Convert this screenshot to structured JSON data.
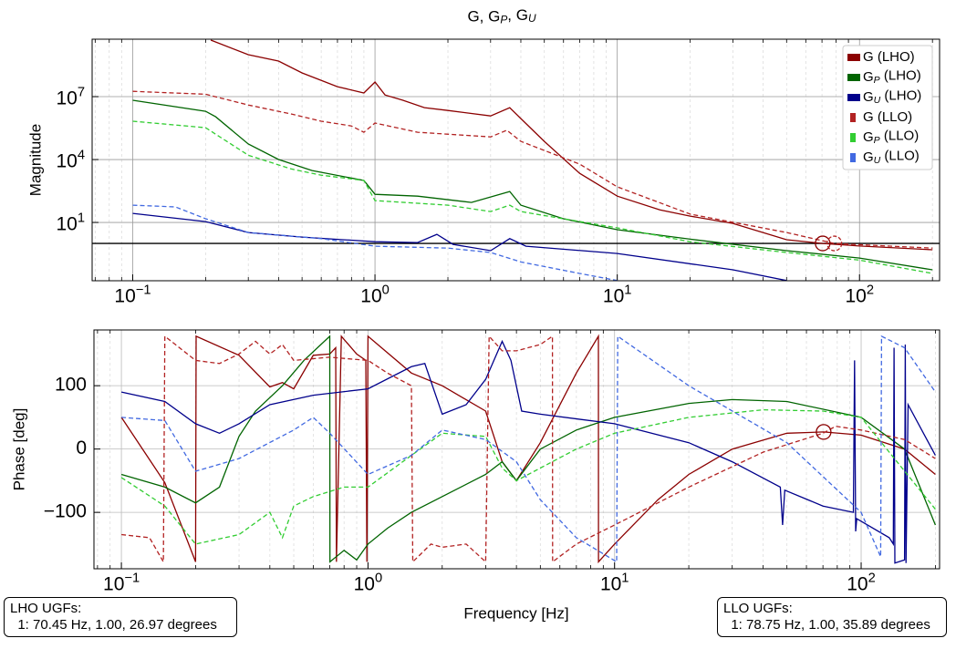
{
  "title": "G, G_P, G_U",
  "xlabel": "Frequency [Hz]",
  "annotations": [
    {
      "lines": [
        "LHO UGFs:",
        "  1: 70.45 Hz, 1.00, 26.97 degrees"
      ]
    },
    {
      "lines": [
        "LLO UGFs:",
        "  1: 78.75 Hz, 1.00, 35.89 degrees"
      ]
    }
  ],
  "chart_data": [
    {
      "type": "line",
      "xscale": "log",
      "yscale": "log",
      "grid": true,
      "legend": "upper right",
      "ylabel": "Magnitude",
      "xlim": [
        0.068,
        214
      ],
      "ylim": [
        0.0166,
        5500000000
      ],
      "xticks": [
        {
          "value": 0.1,
          "label": "10^−1"
        },
        {
          "value": 1,
          "label": "10^0"
        },
        {
          "value": 10,
          "label": "10^1"
        },
        {
          "value": 100,
          "label": "10^2"
        }
      ],
      "yticks": [
        {
          "value": 10,
          "label": "10^1"
        },
        {
          "value": 10000,
          "label": "10^4"
        },
        {
          "value": 10000000,
          "label": "10^7"
        }
      ],
      "hline": 1,
      "markers": [
        {
          "x": 70.45,
          "y": 1,
          "color": "#8b0000"
        },
        {
          "x": 78.75,
          "y": 1,
          "color": "#b22222"
        }
      ],
      "series": [
        {
          "name": "G (LHO)",
          "color": "#8b0000",
          "dashed": false,
          "x": [
            0.21,
            0.3,
            0.4,
            0.5,
            0.7,
            0.9,
            1.0,
            1.1,
            1.3,
            1.6,
            2.0,
            3.0,
            3.6,
            4.0,
            5,
            7,
            10,
            15,
            20,
            30,
            50,
            70.45,
            100,
            200
          ],
          "values": [
            5000000000,
            1000000000,
            500000000,
            135000000,
            30000000,
            15000000,
            50000000,
            12000000,
            6800000,
            3000000,
            2200000,
            1200000,
            3000000,
            900000,
            74000,
            2200,
            180,
            40,
            20,
            9,
            1.5,
            1.0,
            0.75,
            0.5
          ]
        },
        {
          "name": "G_P (LHO)",
          "color": "#006400",
          "dashed": false,
          "x": [
            0.1,
            0.2,
            0.22,
            0.3,
            0.4,
            0.55,
            0.9,
            1.0,
            1.5,
            2.5,
            3.6,
            4.0,
            6,
            10,
            20,
            50,
            100,
            200
          ],
          "values": [
            6700000,
            2000000,
            1100000,
            55000,
            10000,
            3000,
            1000,
            220,
            180,
            90,
            300,
            67,
            15,
            4.5,
            1.6,
            0.45,
            0.2,
            0.055
          ]
        },
        {
          "name": "G_U (LHO)",
          "color": "#00008b",
          "dashed": false,
          "x": [
            0.1,
            0.2,
            0.3,
            0.5,
            1.0,
            1.5,
            1.8,
            2.1,
            3.0,
            3.6,
            4.2,
            10,
            30,
            50
          ],
          "values": [
            27,
            11,
            3.3,
            2,
            1.2,
            1.1,
            2.7,
            0.9,
            0.45,
            1.7,
            0.74,
            0.33,
            0.055,
            0.017
          ]
        },
        {
          "name": "G (LLO)",
          "color": "#b22222",
          "dashed": true,
          "x": [
            0.1,
            0.2,
            0.3,
            0.45,
            0.6,
            0.8,
            0.9,
            1.0,
            1.5,
            3.0,
            3.5,
            4,
            7,
            10,
            20,
            50,
            78.75,
            200
          ],
          "values": [
            18000000,
            13000000,
            4000000,
            1500000,
            670000,
            400000,
            200000,
            550000,
            200000,
            120000,
            250000,
            74000,
            6000,
            500,
            25,
            3.3,
            1,
            0.6
          ]
        },
        {
          "name": "G_P (LLO)",
          "color": "#32cd32",
          "dashed": true,
          "x": [
            0.1,
            0.2,
            0.3,
            0.45,
            0.6,
            0.9,
            1.0,
            2.0,
            3.0,
            3.6,
            4,
            10,
            20,
            50,
            100,
            200
          ],
          "values": [
            670000,
            330000,
            16000,
            3600,
            1800,
            1000,
            110,
            67,
            33,
            67,
            33,
            5.5,
            1.2,
            0.37,
            0.16,
            0.037
          ]
        },
        {
          "name": "G_U (LLO)",
          "color": "#4169e1",
          "dashed": true,
          "x": [
            0.1,
            0.15,
            0.2,
            0.3,
            0.6,
            1.0,
            2,
            3,
            4,
            7,
            10
          ],
          "values": [
            67,
            55,
            15,
            3.3,
            1.7,
            0.74,
            0.6,
            0.37,
            0.13,
            0.037,
            0.017
          ]
        }
      ]
    },
    {
      "type": "line",
      "xscale": "log",
      "grid": true,
      "ylabel": "Phase [deg]",
      "xlim": [
        0.0774,
        208
      ],
      "ylim": [
        -189,
        188
      ],
      "xticks": [
        {
          "value": 0.1,
          "label": "10^−1"
        },
        {
          "value": 1,
          "label": "10^0"
        },
        {
          "value": 10,
          "label": "10^1"
        },
        {
          "value": 100,
          "label": "10^2"
        }
      ],
      "yticks": [
        {
          "value": -100,
          "label": "−100"
        },
        0,
        100
      ],
      "markers": [
        {
          "x": 70.45,
          "y": 26.97,
          "color": "#8b0000"
        }
      ],
      "series": [
        {
          "name": "G (LHO)",
          "color": "#8b0000",
          "dashed": false,
          "x": [
            0.1,
            0.15,
            0.2,
            0.201,
            0.3,
            0.4,
            0.45,
            0.5,
            0.6,
            0.7,
            0.74,
            0.745,
            0.78,
            0.9,
            0.98,
            0.99,
            1.0,
            1.5,
            2.0,
            3.0,
            3.5,
            4.0,
            5,
            7,
            8.6,
            8.61,
            10,
            15,
            20,
            30,
            50,
            70.45,
            100,
            150,
            200
          ],
          "values": [
            50,
            -53,
            -178,
            178,
            148,
            98,
            105,
            95,
            148,
            150,
            160,
            -178,
            178,
            150,
            140,
            -178,
            178,
            120,
            100,
            60,
            -20,
            -50,
            10,
            120,
            178,
            -178,
            -150,
            -80,
            -40,
            0,
            25,
            26.97,
            22,
            0,
            -40
          ]
        },
        {
          "name": "G_P (LHO)",
          "color": "#006400",
          "dashed": false,
          "x": [
            0.1,
            0.15,
            0.2,
            0.25,
            0.3,
            0.35,
            0.45,
            0.55,
            0.7,
            0.701,
            0.8,
            0.9,
            1.0,
            1.2,
            1.5,
            2.0,
            3.0,
            3.5,
            4.0,
            5,
            7,
            10,
            20,
            30,
            50,
            100,
            150,
            200
          ],
          "values": [
            -40,
            -60,
            -85,
            -60,
            20,
            60,
            100,
            140,
            178,
            -178,
            -160,
            -175,
            -150,
            -125,
            -100,
            -75,
            -40,
            -20,
            -50,
            0,
            30,
            50,
            72,
            78,
            75,
            50,
            0,
            -120
          ]
        },
        {
          "name": "G_U (LHO)",
          "color": "#00008b",
          "dashed": false,
          "x": [
            0.1,
            0.15,
            0.2,
            0.25,
            0.3,
            0.4,
            0.6,
            1.0,
            1.5,
            1.7,
            2.0,
            2.5,
            3.0,
            3.5,
            3.8,
            4.2,
            5,
            10,
            20,
            30,
            47,
            48,
            49,
            70,
            93,
            94,
            95,
            96,
            130,
            135,
            136,
            137,
            150,
            151,
            152,
            155,
            200
          ],
          "values": [
            90,
            75,
            40,
            25,
            40,
            70,
            85,
            95,
            130,
            135,
            55,
            70,
            110,
            170,
            140,
            60,
            55,
            40,
            10,
            -20,
            -60,
            -120,
            -65,
            -90,
            -100,
            140,
            -130,
            -110,
            -140,
            -150,
            160,
            -180,
            -175,
            165,
            -180,
            70,
            -10
          ]
        },
        {
          "name": "G (LLO)",
          "color": "#b22222",
          "dashed": true,
          "x": [
            0.1,
            0.13,
            0.148,
            0.15,
            0.2,
            0.25,
            0.3,
            0.35,
            0.4,
            0.45,
            0.5,
            0.7,
            1.0,
            1.2,
            1.5,
            1.52,
            1.8,
            2.0,
            2.5,
            3.0,
            3.1,
            3.5,
            4,
            5,
            5.6,
            5.61,
            7,
            10,
            20,
            40,
            70,
            78.75,
            100,
            150,
            200
          ],
          "values": [
            -135,
            -140,
            -178,
            178,
            140,
            135,
            150,
            170,
            150,
            165,
            140,
            145,
            140,
            120,
            100,
            -178,
            -150,
            -155,
            -150,
            -178,
            178,
            155,
            155,
            165,
            178,
            -178,
            -150,
            -120,
            -60,
            -5,
            25,
            35.89,
            30,
            15,
            -15
          ]
        },
        {
          "name": "G_P (LLO)",
          "color": "#32cd32",
          "dashed": true,
          "x": [
            0.1,
            0.15,
            0.2,
            0.3,
            0.4,
            0.45,
            0.5,
            0.6,
            0.8,
            1.0,
            1.5,
            2.0,
            3.0,
            3.5,
            4.0,
            5,
            7,
            10,
            20,
            40,
            70,
            100,
            200
          ],
          "values": [
            -45,
            -90,
            -150,
            -135,
            -100,
            -140,
            -90,
            -75,
            -60,
            -60,
            -10,
            25,
            20,
            -30,
            -50,
            -30,
            0,
            25,
            50,
            62,
            60,
            50,
            -95
          ]
        },
        {
          "name": "G_U (LLO)",
          "color": "#4169e1",
          "dashed": true,
          "x": [
            0.1,
            0.15,
            0.2,
            0.3,
            0.5,
            0.6,
            0.7,
            1.0,
            1.5,
            2.0,
            3,
            4,
            5,
            7,
            10.2,
            10.3,
            20,
            50,
            100,
            120,
            121,
            150,
            200
          ],
          "values": [
            50,
            45,
            -35,
            -15,
            30,
            50,
            25,
            -40,
            -10,
            30,
            15,
            -20,
            -80,
            -140,
            -178,
            178,
            100,
            10,
            -100,
            -170,
            178,
            160,
            90
          ]
        }
      ]
    }
  ]
}
